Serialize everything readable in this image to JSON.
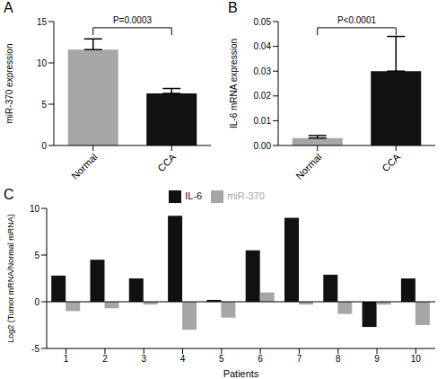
{
  "chart_data": [
    {
      "type": "bar",
      "title": "A",
      "categories": [
        "Normal",
        "CCA"
      ],
      "values": [
        11.6,
        6.3
      ],
      "errors": [
        1.3,
        0.6
      ],
      "colors": [
        "#a6a6a6",
        "#111111"
      ],
      "y_label": "miR-370 expression",
      "ylim": [
        0,
        15
      ],
      "yticks": [
        0,
        5,
        10,
        15
      ],
      "annotations": [
        "P=0.0003"
      ]
    },
    {
      "type": "bar",
      "title": "B",
      "categories": [
        "Normal",
        "CCA"
      ],
      "values": [
        0.003,
        0.03
      ],
      "errors": [
        0.001,
        0.014
      ],
      "colors": [
        "#a6a6a6",
        "#111111"
      ],
      "y_label": "IL-6 mRNA expression",
      "ylim": [
        0,
        0.05
      ],
      "yticks": [
        {
          "value": 0,
          "label": "0.00"
        },
        {
          "value": 0.01,
          "label": "0.01"
        },
        {
          "value": 0.02,
          "label": "0.02"
        },
        {
          "value": 0.03,
          "label": "0.03"
        },
        {
          "value": 0.04,
          "label": "0.04"
        },
        {
          "value": 0.05,
          "label": "0.05"
        }
      ],
      "annotations": [
        "P<0.0001"
      ]
    },
    {
      "type": "bar",
      "title": "C",
      "categories": [
        "1",
        "2",
        "3",
        "4",
        "5",
        "6",
        "7",
        "8",
        "9",
        "10"
      ],
      "series": [
        {
          "name": "IL-6",
          "color": "#111111",
          "values": [
            2.8,
            4.5,
            2.5,
            9.2,
            0.2,
            5.5,
            9.0,
            2.9,
            -2.7,
            2.5
          ]
        },
        {
          "name": "miR-370",
          "color": "#a6a6a6",
          "values": [
            -1.0,
            -0.7,
            -0.3,
            -3.0,
            -1.7,
            1.0,
            -0.3,
            -1.3,
            -0.3,
            -2.5
          ]
        }
      ],
      "y_label": "Log2 (Tumor mRNA/Normal mRNA)",
      "x_label": "Patients",
      "ylim": [
        -5,
        10
      ],
      "yticks": [
        -5,
        0,
        5,
        10
      ],
      "legend": "top"
    }
  ]
}
